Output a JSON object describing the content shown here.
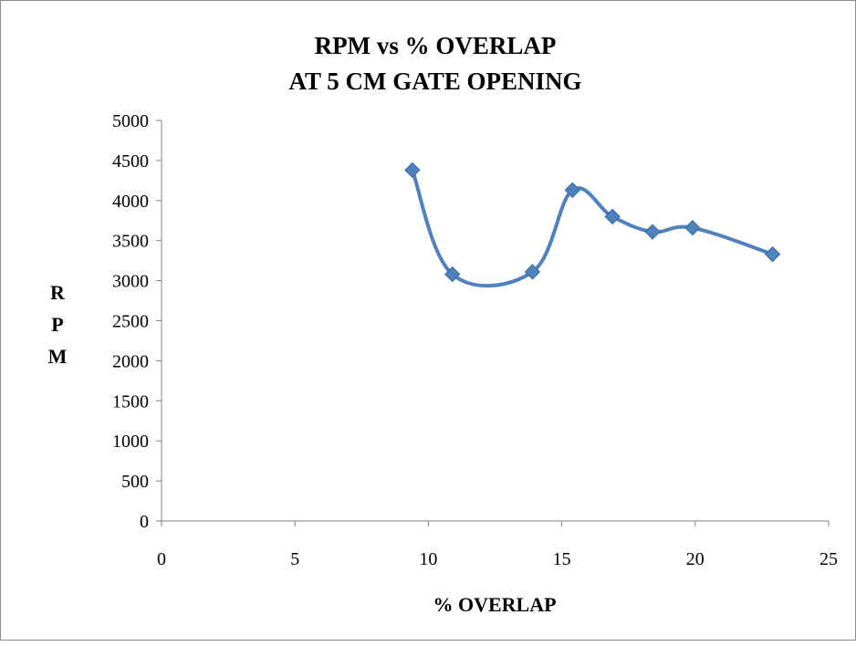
{
  "chart_data": {
    "type": "scatter",
    "title_lines": [
      "RPM vs % OVERLAP",
      "AT 5 CM GATE OPENING"
    ],
    "xlabel": "% OVERLAP",
    "ylabel_letters": [
      "R",
      "P",
      "M"
    ],
    "xlim": [
      0,
      25
    ],
    "ylim": [
      0,
      5000
    ],
    "x_ticks": [
      0,
      5,
      10,
      15,
      20,
      25
    ],
    "y_ticks": [
      0,
      500,
      1000,
      1500,
      2000,
      2500,
      3000,
      3500,
      4000,
      4500,
      5000
    ],
    "grid": false,
    "legend": "none",
    "line_style": "smoothed line with diamond markers",
    "color": "#4f81bd",
    "series": [
      {
        "x": [
          9.4,
          10.9,
          13.9,
          15.4,
          16.9,
          18.4,
          19.9,
          22.9
        ],
        "y": [
          4380,
          3080,
          3110,
          4130,
          3800,
          3610,
          3660,
          3330
        ]
      }
    ]
  }
}
